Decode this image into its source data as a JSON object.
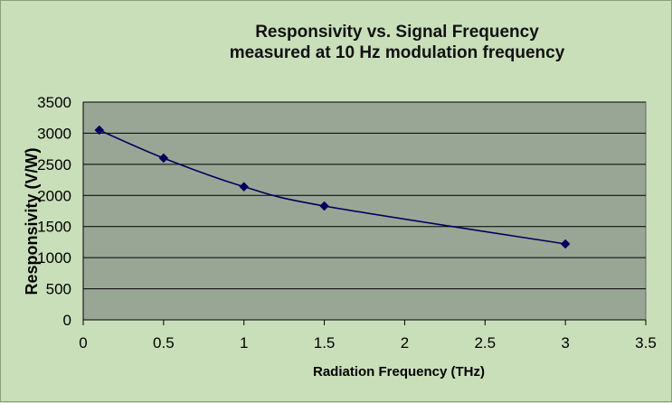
{
  "chart_data": {
    "type": "line",
    "title": "Responsivity vs. Signal Frequency",
    "subtitle": "measured at 10 Hz modulation frequency",
    "xlabel": "Radiation Frequency (THz)",
    "ylabel": "Responsivity (V/W)",
    "xlim": [
      0,
      3.5
    ],
    "ylim": [
      0,
      3500
    ],
    "x_ticks": [
      "0",
      "0.5",
      "1",
      "1.5",
      "2",
      "2.5",
      "3",
      "3.5"
    ],
    "y_ticks": [
      "0",
      "500",
      "1000",
      "1500",
      "2000",
      "2500",
      "3000",
      "3500"
    ],
    "grid": "horizontal",
    "legend": "none",
    "series": [
      {
        "x": [
          0.1,
          0.5,
          1,
          1.5,
          3
        ],
        "y": [
          3050,
          2600,
          2140,
          1830,
          1220
        ],
        "color": "#00005e"
      }
    ],
    "colors": {
      "background": "#c9dfba",
      "plot_area": "#9aa695",
      "line": "#00005e",
      "grid": "#000000"
    }
  }
}
